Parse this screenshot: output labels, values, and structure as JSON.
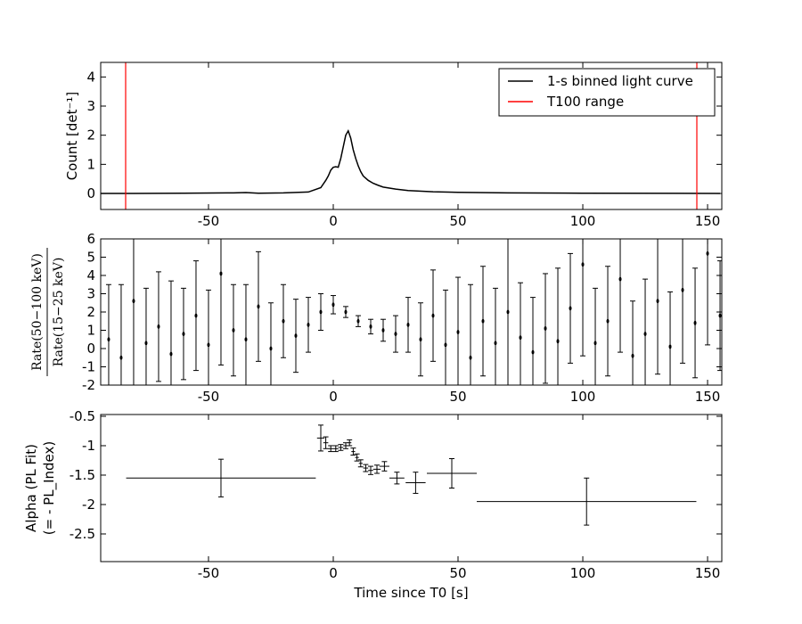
{
  "chart_data": [
    {
      "type": "line",
      "ylabel": "Count [det⁻¹]",
      "xlim": [
        -93.2,
        155.7
      ],
      "xticks": [
        -50,
        0,
        50,
        100,
        150
      ],
      "ylim": [
        -0.55,
        4.5
      ],
      "yticks": [
        0,
        1,
        2,
        3,
        4
      ],
      "legend": "upper right",
      "series": [
        {
          "name": "1-s binned light curve",
          "color": "#000000",
          "x": [
            -93,
            -80,
            -60,
            -40,
            -35,
            -30,
            -20,
            -10,
            -5,
            -3,
            -2,
            -1,
            0,
            1,
            2,
            3,
            4,
            5,
            6,
            7,
            8,
            9,
            10,
            11,
            12,
            14,
            16,
            18,
            20,
            25,
            30,
            40,
            50,
            70,
            100,
            155
          ],
          "values": [
            0.0,
            0.0,
            0.01,
            0.02,
            0.03,
            0.01,
            0.02,
            0.05,
            0.2,
            0.45,
            0.6,
            0.8,
            0.9,
            0.92,
            0.9,
            1.2,
            1.6,
            2.0,
            2.15,
            1.9,
            1.5,
            1.2,
            0.95,
            0.75,
            0.6,
            0.45,
            0.35,
            0.28,
            0.22,
            0.15,
            0.1,
            0.06,
            0.04,
            0.02,
            0.01,
            0.0
          ]
        }
      ],
      "vlines": {
        "name": "T100 range",
        "color": "#ff0000",
        "x": [
          -83.2,
          145.7
        ]
      }
    },
    {
      "type": "errorbar",
      "ylabel_numerator": "Rate(50−100 keV)",
      "ylabel_denominator": "Rate(15−25 keV)",
      "xlim": [
        -93.2,
        155.7
      ],
      "xticks": [
        -50,
        0,
        50,
        100,
        150
      ],
      "ylim": [
        -2,
        6
      ],
      "yticks": [
        -2,
        -1,
        0,
        1,
        2,
        3,
        4,
        5,
        6
      ],
      "x": [
        -90,
        -85,
        -80,
        -75,
        -70,
        -65,
        -60,
        -55,
        -50,
        -45,
        -40,
        -35,
        -30,
        -25,
        -20,
        -15,
        -10,
        -5,
        0,
        5,
        10,
        15,
        20,
        25,
        30,
        35,
        40,
        45,
        50,
        55,
        60,
        65,
        70,
        75,
        80,
        85,
        90,
        95,
        100,
        105,
        110,
        115,
        120,
        125,
        130,
        135,
        140,
        145,
        150,
        155
      ],
      "values": [
        0.5,
        -0.5,
        2.6,
        0.3,
        1.2,
        -0.3,
        0.8,
        1.8,
        0.2,
        4.1,
        1.0,
        0.5,
        2.3,
        0.0,
        1.5,
        0.7,
        1.3,
        2.0,
        2.4,
        2.0,
        1.5,
        1.2,
        1.0,
        0.8,
        1.3,
        0.5,
        1.8,
        0.2,
        0.9,
        -0.5,
        1.5,
        0.3,
        2.0,
        0.6,
        -0.2,
        1.1,
        0.4,
        2.2,
        4.6,
        0.3,
        1.5,
        3.8,
        -0.4,
        0.8,
        2.6,
        0.1,
        3.2,
        1.4,
        5.2,
        1.8
      ],
      "errors": [
        3,
        4,
        5,
        3,
        3,
        4,
        2.5,
        3,
        3,
        5,
        2.5,
        3,
        3,
        2.5,
        2,
        2,
        1.5,
        1,
        0.5,
        0.3,
        0.3,
        0.4,
        0.6,
        1,
        1.5,
        2,
        2.5,
        3,
        3,
        4,
        3,
        3,
        4,
        3,
        3,
        3,
        4,
        3,
        5,
        3,
        3,
        4,
        3,
        3,
        4,
        3,
        4,
        3,
        5,
        3
      ]
    },
    {
      "type": "errorbar",
      "ylabel": "Alpha (PL Fit)",
      "ylabel2": "(= - PL_Index)",
      "xlabel": "Time since T0 [s]",
      "xlim": [
        -93.2,
        155.7
      ],
      "xticks": [
        -50,
        0,
        50,
        100,
        150
      ],
      "ylim": [
        -2.97,
        -0.47
      ],
      "yticks": [
        -2.5,
        -2.0,
        -1.5,
        -1.0,
        -0.5
      ],
      "x": [
        -45,
        -5,
        -3,
        -1,
        1,
        3,
        5,
        6.5,
        8,
        9.5,
        11,
        13,
        15,
        17.5,
        20.5,
        25.5,
        33,
        47.5,
        101.5
      ],
      "xerrors": [
        38,
        1.5,
        1,
        1,
        1,
        1,
        1,
        0.75,
        0.75,
        0.75,
        0.75,
        1,
        1,
        1.5,
        2,
        3,
        4,
        10,
        44
      ],
      "values": [
        -1.55,
        -0.87,
        -0.95,
        -1.05,
        -1.05,
        -1.03,
        -1.0,
        -0.95,
        -1.1,
        -1.2,
        -1.3,
        -1.38,
        -1.42,
        -1.4,
        -1.35,
        -1.55,
        -1.63,
        -1.47,
        -1.95
      ],
      "errors": [
        0.32,
        0.22,
        0.1,
        0.05,
        0.05,
        0.05,
        0.05,
        0.05,
        0.06,
        0.06,
        0.06,
        0.06,
        0.07,
        0.07,
        0.08,
        0.1,
        0.18,
        0.25,
        0.4
      ]
    }
  ]
}
